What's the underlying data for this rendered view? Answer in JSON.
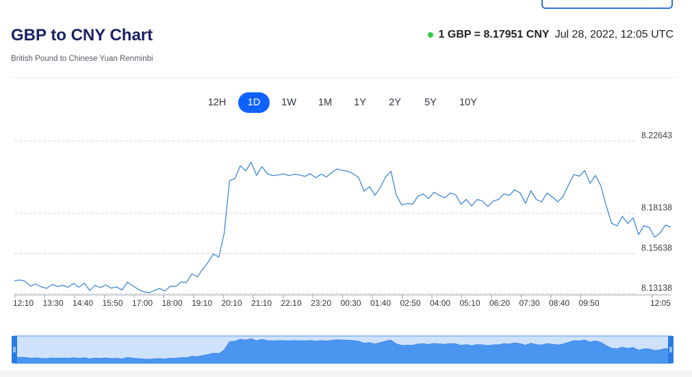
{
  "header": {
    "title": "GBP to CNY Chart",
    "subtitle": "British Pound to Chinese Yuan Renminbi",
    "rate_text": "1 GBP = 8.17951 CNY",
    "timestamp": "Jul 28, 2022, 12:05 UTC"
  },
  "ranges": [
    {
      "label": "12H",
      "active": false
    },
    {
      "label": "1D",
      "active": true
    },
    {
      "label": "1W",
      "active": false
    },
    {
      "label": "1M",
      "active": false
    },
    {
      "label": "1Y",
      "active": false
    },
    {
      "label": "2Y",
      "active": false
    },
    {
      "label": "5Y",
      "active": false
    },
    {
      "label": "10Y",
      "active": false
    }
  ],
  "colors": {
    "line": "#2f7fd8",
    "navigator_fill": "#4a95f0",
    "navigator_bg": "#cfe2fb",
    "active_button": "#0f62fe",
    "live_dot": "#2ecc40",
    "title": "#1b1f63"
  },
  "chart_data": {
    "type": "line",
    "title": "GBP to CNY Chart",
    "y_ticks": [
      "8.22643",
      "8.18138",
      "8.15638",
      "8.13138"
    ],
    "ylim": [
      8.13138,
      8.22643
    ],
    "x_ticks": [
      "12:10",
      "13:30",
      "14:40",
      "15:50",
      "17:00",
      "18:00",
      "19:10",
      "20:10",
      "21:10",
      "22:10",
      "23:20",
      "00:30",
      "01:40",
      "02:50",
      "04:00",
      "05:10",
      "06:20",
      "07:30",
      "08:40",
      "09:50",
      "12:05"
    ],
    "grid": "horizontal dashed",
    "series": [
      {
        "values": [
          8.1393,
          8.1398,
          8.139,
          8.136,
          8.1373,
          8.1355,
          8.1346,
          8.137,
          8.1358,
          8.1365,
          8.1353,
          8.1377,
          8.1353,
          8.1378,
          8.1333,
          8.1365,
          8.135,
          8.1368,
          8.1347,
          8.1355,
          8.1335,
          8.1385,
          8.1363,
          8.134,
          8.1325,
          8.1318,
          8.1333,
          8.1345,
          8.133,
          8.136,
          8.1358,
          8.1386,
          8.1383,
          8.1437,
          8.1418,
          8.1465,
          8.1508,
          8.156,
          8.154,
          8.169,
          8.2018,
          8.203,
          8.211,
          8.2078,
          8.2132,
          8.205,
          8.2105,
          8.206,
          8.2048,
          8.2052,
          8.206,
          8.2048,
          8.2057,
          8.2052,
          8.2044,
          8.206,
          8.2035,
          8.2058,
          8.204,
          8.2068,
          8.209,
          8.208,
          8.2075,
          8.206,
          8.2035,
          8.195,
          8.198,
          8.1925,
          8.1975,
          8.204,
          8.2075,
          8.1925,
          8.1865,
          8.1875,
          8.187,
          8.192,
          8.1935,
          8.1905,
          8.1945,
          8.1925,
          8.191,
          8.194,
          8.193,
          8.187,
          8.19,
          8.186,
          8.19,
          8.189,
          8.1855,
          8.189,
          8.19,
          8.1935,
          8.1925,
          8.196,
          8.194,
          8.1875,
          8.1955,
          8.19,
          8.1885,
          8.194,
          8.1915,
          8.1885,
          8.192,
          8.199,
          8.2055,
          8.2045,
          8.208,
          8.2,
          8.205,
          8.1985,
          8.186,
          8.1752,
          8.1735,
          8.1795,
          8.175,
          8.1785,
          8.168,
          8.1736,
          8.1725,
          8.1665,
          8.169,
          8.174,
          8.1728
        ],
        "comment": "approximate 1D exchange rate, values read off the y-axis gridlines"
      }
    ]
  }
}
